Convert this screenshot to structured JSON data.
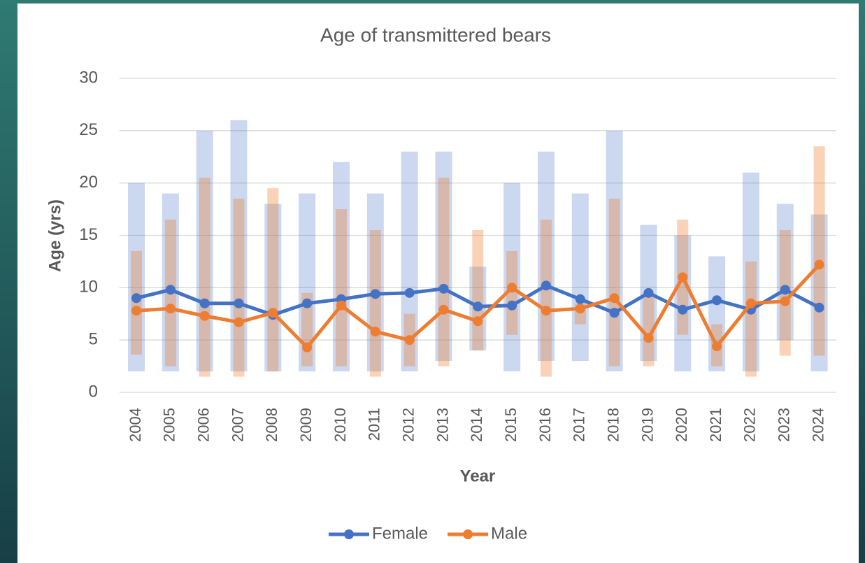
{
  "chart_data": {
    "type": "line",
    "title": "Age of transmittered bears",
    "x_label": "Year",
    "y_label": "Age (yrs)",
    "categories": [
      "2004",
      "2005",
      "2006",
      "2007",
      "2008",
      "2009",
      "2010",
      "2011",
      "2012",
      "2013",
      "2014",
      "2015",
      "2016",
      "2017",
      "2018",
      "2019",
      "2020",
      "2021",
      "2022",
      "2023",
      "2024"
    ],
    "series": [
      {
        "name": "Female",
        "color": "#4472c4",
        "values": [
          9.0,
          9.8,
          8.5,
          8.5,
          7.4,
          8.5,
          8.9,
          9.4,
          9.5,
          9.9,
          8.2,
          8.3,
          10.2,
          8.9,
          7.6,
          9.5,
          7.9,
          8.8,
          7.9,
          9.8,
          8.1
        ],
        "low": [
          2,
          2,
          2,
          2,
          2,
          2,
          2,
          2,
          2,
          3,
          4,
          2,
          3,
          3,
          2,
          3,
          2,
          2,
          2,
          5,
          2
        ],
        "high": [
          20,
          19,
          25,
          26,
          18,
          19,
          22,
          19,
          23,
          23,
          12,
          20,
          23,
          19,
          25,
          16,
          15,
          13,
          21,
          18,
          17
        ]
      },
      {
        "name": "Male",
        "color": "#ed7d31",
        "values": [
          7.8,
          8.0,
          7.3,
          6.7,
          7.6,
          4.3,
          8.3,
          5.8,
          5.0,
          7.9,
          6.8,
          10.0,
          7.8,
          8.0,
          9.0,
          5.2,
          11.0,
          4.4,
          8.5,
          8.7,
          12.2
        ],
        "low": [
          3.6,
          2.5,
          1.5,
          1.5,
          2,
          2.5,
          2.5,
          1.5,
          2.5,
          2.5,
          4,
          5.5,
          1.5,
          6.5,
          2.5,
          2.5,
          5.5,
          2.5,
          1.5,
          3.5,
          3.5
        ],
        "high": [
          13.5,
          16.5,
          20.5,
          18.5,
          19.5,
          9.5,
          17.5,
          15.5,
          7.5,
          20.5,
          15.5,
          13.5,
          16.5,
          8.5,
          18.5,
          9.5,
          16.5,
          6.5,
          12.5,
          15.5,
          23.5
        ]
      }
    ],
    "ylim": [
      0,
      30
    ],
    "yticks": [
      0,
      5,
      10,
      15,
      20,
      25,
      30
    ],
    "grid": true,
    "legend": "bottom"
  }
}
